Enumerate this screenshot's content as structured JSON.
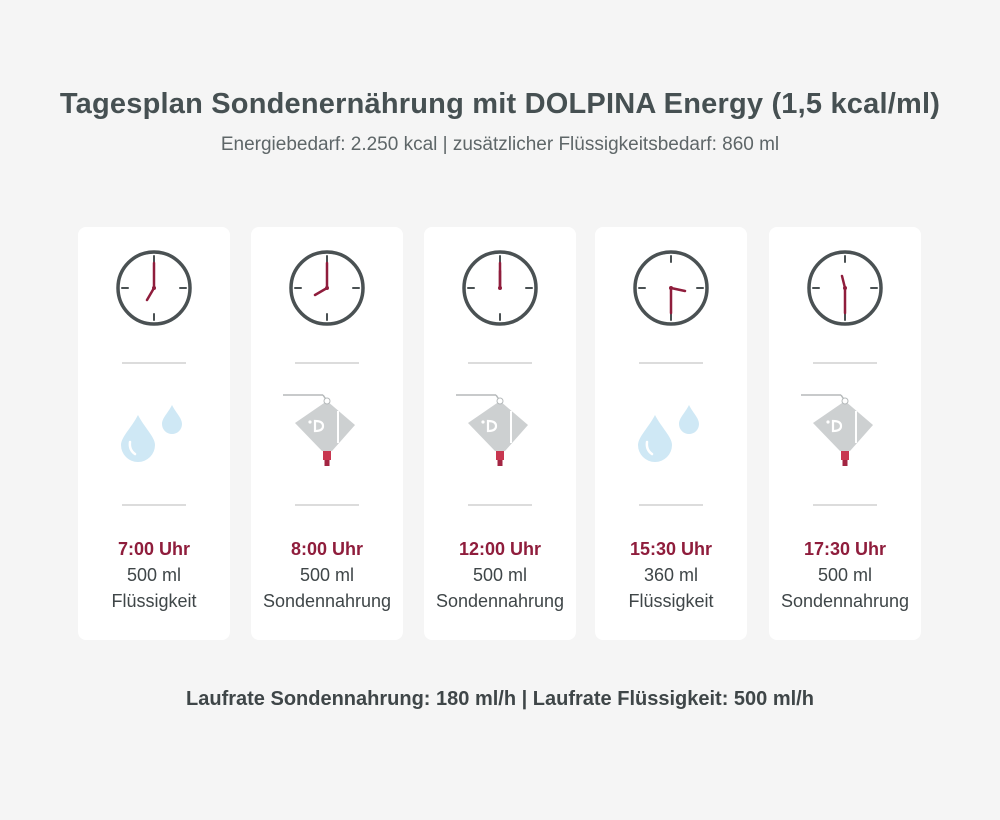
{
  "header": {
    "title": "Tagesplan Sondenernährung mit DOLPINA Energy (1,5 kcal/ml)",
    "subtitle": "Energiebedarf: 2.250 kcal | zusätzlicher Flüssigkeitsbedarf: 860 ml"
  },
  "cards": [
    {
      "time": "7:00 Uhr",
      "amount": "500 ml",
      "kind": "Flüssigkeit",
      "icon": "water-drops-icon"
    },
    {
      "time": "8:00 Uhr",
      "amount": "500 ml",
      "kind": "Sondennahrung",
      "icon": "feeding-bag-icon"
    },
    {
      "time": "12:00 Uhr",
      "amount": "500 ml",
      "kind": "Sondennahrung",
      "icon": "feeding-bag-icon"
    },
    {
      "time": "15:30 Uhr",
      "amount": "360 ml",
      "kind": "Flüssigkeit",
      "icon": "water-drops-icon"
    },
    {
      "time": "17:30 Uhr",
      "amount": "500 ml",
      "kind": "Sondennahrung",
      "icon": "feeding-bag-icon"
    }
  ],
  "footer": {
    "text": "Laufrate Sondennahrung: 180 ml/h | Laufrate Flüssigkeit: 500 ml/h"
  },
  "colors": {
    "time_accent": "#8f1d3c",
    "clock_stroke": "#4a5153",
    "drop_fill": "#cfe8f5",
    "bag_fill": "#cdd0d1"
  }
}
